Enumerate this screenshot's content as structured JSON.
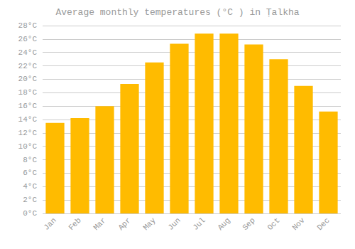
{
  "chart_data": {
    "type": "bar",
    "title": "Average monthly temperatures (°C ) in Ṭalkha",
    "categories": [
      "Jan",
      "Feb",
      "Mar",
      "Apr",
      "May",
      "Jun",
      "Jul",
      "Aug",
      "Sep",
      "Oct",
      "Nov",
      "Dec"
    ],
    "values": [
      13.5,
      14.2,
      16.0,
      19.3,
      22.5,
      25.3,
      26.8,
      26.8,
      25.2,
      23.0,
      19.0,
      15.2
    ],
    "color": "#FFBB00",
    "ylim": [
      0,
      28
    ],
    "yticks": [
      {
        "value": 0,
        "label": "0°C"
      },
      {
        "value": 2,
        "label": "2°C"
      },
      {
        "value": 4,
        "label": "4°C"
      },
      {
        "value": 6,
        "label": "6°C"
      },
      {
        "value": 8,
        "label": "8°C"
      },
      {
        "value": 10,
        "label": "10°C"
      },
      {
        "value": 12,
        "label": "12°C"
      },
      {
        "value": 14,
        "label": "14°C"
      },
      {
        "value": 16,
        "label": "16°C"
      },
      {
        "value": 18,
        "label": "18°C"
      },
      {
        "value": 20,
        "label": "20°C"
      },
      {
        "value": 22,
        "label": "22°C"
      },
      {
        "value": 24,
        "label": "24°C"
      },
      {
        "value": 26,
        "label": "26°C"
      },
      {
        "value": 28,
        "label": "28°C"
      }
    ],
    "grid": true
  }
}
